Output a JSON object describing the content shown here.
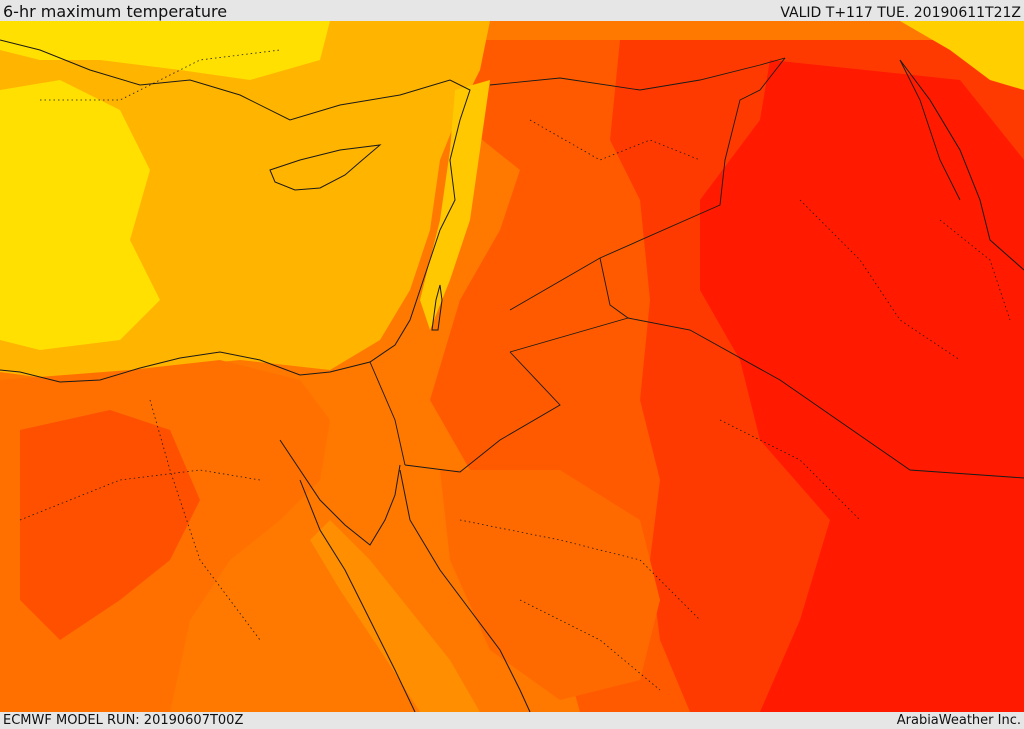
{
  "header": {
    "title": "6-hr maximum temperature",
    "valid": "VALID T+117 TUE. 20190611T21Z"
  },
  "footer": {
    "model_run": "ECMWF MODEL RUN: 20190607T00Z",
    "credit": "ArabiaWeather Inc."
  },
  "map": {
    "field": "6-hr maximum temperature",
    "palette": {
      "coolest": "#ffe000",
      "cool": "#ffb400",
      "mild": "#ff9a00",
      "warm": "#ff7800",
      "hot": "#ff5a00",
      "hotter": "#ff3a00",
      "hottest": "#ff1400"
    },
    "coastline_color": "#1a1a1a",
    "border_style": "dotted"
  }
}
